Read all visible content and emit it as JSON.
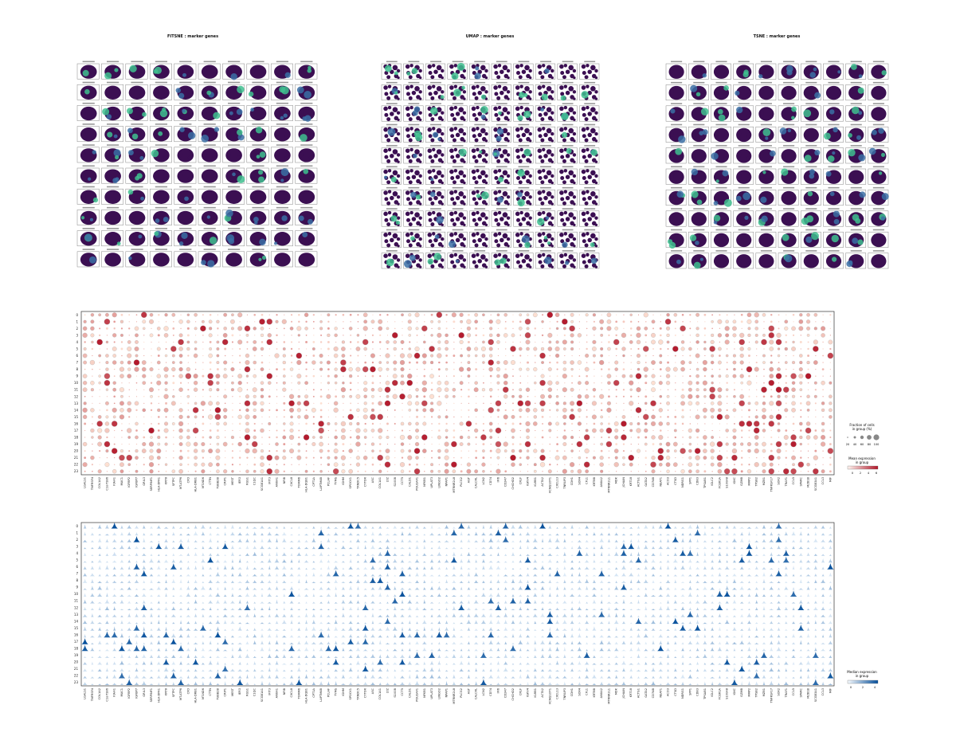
{
  "panels": {
    "fitsne_title": "FITSNE : marker genes",
    "umap_title": "UMAP : marker genes",
    "tsne_title": "TSNE : marker genes"
  },
  "colors": {
    "embedding_bg": "#3b0f52",
    "embedding_high": "#3fbf8f",
    "embedding_mid": "#3b6ea5",
    "dot_high": "#b2182b",
    "dot_low": "#fde0d2",
    "violin_high": "#08519c",
    "violin_low": "#dbe9f6",
    "frame": "#888888"
  },
  "chart_data": [
    {
      "type": "scatter",
      "name_ref": "panels.fitsne_title",
      "rows": 10,
      "cols": 10,
      "note_ref": "subplot labels unreadable"
    },
    {
      "type": "scatter",
      "name_ref": "panels.umap_title",
      "rows": 10,
      "cols": 10
    },
    {
      "type": "scatter",
      "name_ref": "panels.tsne_title",
      "rows": 10,
      "cols": 10
    },
    {
      "type": "scatter",
      "subtype": "dotplot",
      "groups": [
        "0",
        "1",
        "2",
        "3",
        "4",
        "5",
        "6",
        "7",
        "8",
        "9",
        "10",
        "11",
        "12",
        "13",
        "14",
        "15",
        "16",
        "17",
        "18",
        "19",
        "20",
        "21",
        "22",
        "23"
      ],
      "genes": [
        "LGALS1",
        "TNFRSF4",
        "COL1A2",
        "C1orf186",
        "KIAA1",
        "MUC1",
        "IGFBP2",
        "IGFBP7",
        "GRIL3",
        "SERPINF1",
        "HLA-DPA1",
        "KRT8",
        "SFTPC",
        "MT-ATP6",
        "CFD",
        "HLA-DRB1",
        "MT-ND6",
        "CTTN",
        "TUBB2B",
        "CRIP1",
        "MEST",
        "IER3",
        "RGS1",
        "C1QC",
        "SCGB1A1",
        "IFIT3",
        "ANXA1",
        "NFIB",
        "CXCL8",
        "TOMM6",
        "HLA-DQB1",
        "CPT1A",
        "LAPTM4B",
        "PCLAF",
        "TYMS",
        "IGHM",
        "SPOCK1",
        "TXNDC5",
        "CYTOR",
        "ASC",
        "COL1A1",
        "LYZ",
        "S100B",
        "CCT5",
        "CALD1",
        "POU2AF1",
        "NFKB1",
        "UPLAT3",
        "LINGO2",
        "NPAP1",
        "MTRNR2L8",
        "PLCG2",
        "AGT",
        "CALCRL",
        "LCN2",
        "CD74",
        "IFI6",
        "CD247",
        "CHCHD2",
        "CRLF",
        "IGKV4",
        "KLRB1",
        "ACTA2",
        "KCNQ1OT1",
        "CXCL13",
        "TNFAIP3",
        "CDH1",
        "SOX4",
        "CFL1",
        "KRT8B",
        "ANXA2",
        "MTRNR2L1",
        "MDK",
        "JCHAIN",
        "KRT18",
        "ACTG1",
        "GATA2",
        "CD74B",
        "NEAT1",
        "ACO3",
        "CTSD",
        "NDRG1",
        "SPP1",
        "CD83",
        "TPSAB1",
        "IGLC2",
        "FCER1A",
        "S100A8",
        "IGKC",
        "GZMB",
        "MMP2",
        "TPSB2",
        "MZB1",
        "TNFRSF17",
        "SOX2",
        "TRAF1",
        "CCL5",
        "SPARC",
        "MZB1B",
        "SCGB3A1",
        "CCL3",
        "MIF"
      ],
      "legend_size_title": "Fraction of cells\nin group (%)",
      "legend_size_ticks": [
        "20",
        "40",
        "60",
        "80",
        "100"
      ],
      "legend_color_title": "Mean expression\nin group",
      "legend_color_ticks": [
        "0",
        "2",
        "4",
        "6"
      ],
      "color_range": [
        0,
        6
      ]
    },
    {
      "type": "area",
      "subtype": "stacked_violin",
      "groups_ref": "chart_data.3.groups",
      "genes_ref": "chart_data.3.genes",
      "legend_color_title": "Median expression\nin group",
      "legend_color_ticks": [
        "0",
        "2",
        "4"
      ],
      "color_range": [
        0,
        4
      ]
    }
  ]
}
